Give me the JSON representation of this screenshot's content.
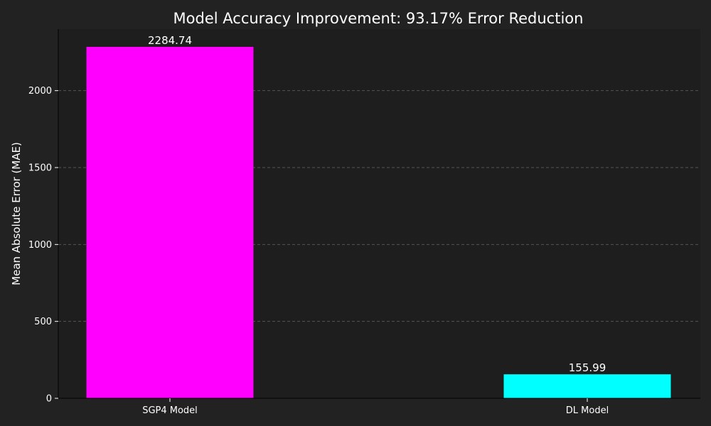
{
  "chart_data": {
    "type": "bar",
    "title": "Model Accuracy Improvement: 93.17% Error Reduction",
    "xlabel": "",
    "ylabel": "Mean Absolute Error (MAE)",
    "categories": [
      "SGP4 Model",
      "DL Model"
    ],
    "values": [
      2284.74,
      155.99
    ],
    "value_labels": [
      "2284.74",
      "155.99"
    ],
    "bar_colors": [
      "#ff00ff",
      "#00ffff"
    ],
    "ylim": [
      0,
      2400
    ],
    "yticks": [
      0,
      500,
      1000,
      1500,
      2000
    ],
    "ytick_labels": [
      "0",
      "500",
      "1000",
      "1500",
      "2000"
    ],
    "grid": true,
    "grid_axis": "y",
    "colors": {
      "page_background": "#222222",
      "plot_background": "#1e1e1e",
      "text": "#ffffff",
      "grid": "#555555",
      "axis": "#000000"
    }
  }
}
